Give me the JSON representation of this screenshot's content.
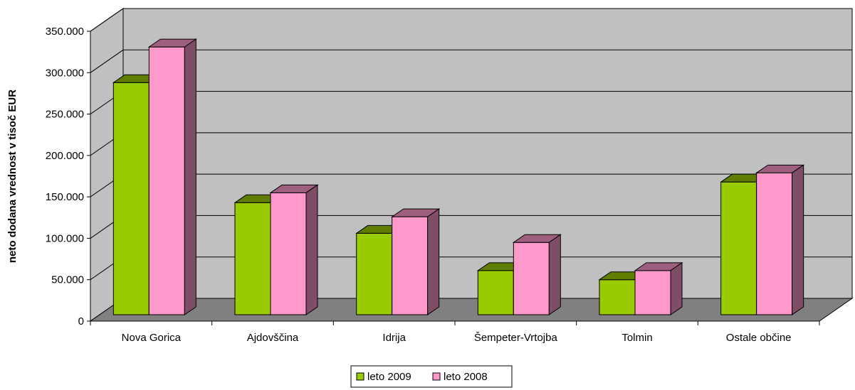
{
  "chart_data": {
    "type": "bar",
    "style": "3d-clustered-column",
    "ylabel": "neto dodana vrednost v tisoč EUR",
    "xlabel": "",
    "categories": [
      "Nova Gorica",
      "Ajdovščina",
      "Idrija",
      "Šempeter-Vrtojba",
      "Tolmin",
      "Ostale občine"
    ],
    "ylim": [
      0,
      350000
    ],
    "yticks": [
      "0",
      "50.000",
      "100.000",
      "150.000",
      "200.000",
      "250.000",
      "300.000",
      "350.000"
    ],
    "grid": true,
    "legend_position": "bottom",
    "series": [
      {
        "name": "leto 2009",
        "color": "#99cc00",
        "values": [
          288000,
          143000,
          106000,
          61000,
          50000,
          168000
        ]
      },
      {
        "name": "leto 2008",
        "color": "#ff99cc",
        "values": [
          331000,
          155000,
          126000,
          95000,
          61000,
          179000
        ]
      }
    ]
  },
  "colors": {
    "wall": "#c0c0c0",
    "floor": "#808080",
    "axis": "#000000",
    "grid": "#000000"
  }
}
